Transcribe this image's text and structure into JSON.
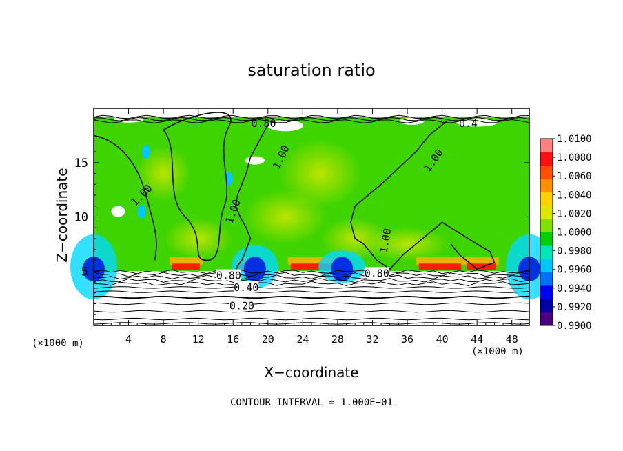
{
  "chart_data": {
    "type": "heatmap",
    "title": "saturation ratio",
    "xlabel": "X−coordinate",
    "ylabel": "Z−coordinate",
    "x_unit_label": "(×1000 m)",
    "footer": "CONTOUR INTERVAL = 1.000E−01",
    "xlim": [
      0,
      50
    ],
    "ylim": [
      0,
      20
    ],
    "x_ticks": [
      4,
      8,
      12,
      16,
      20,
      24,
      28,
      32,
      36,
      40,
      44,
      48
    ],
    "y_ticks": [
      5,
      10,
      15
    ],
    "colorbar": {
      "min": 0.99,
      "max": 1.01,
      "labels": [
        "1.0100",
        "1.0080",
        "1.0060",
        "1.0040",
        "1.0020",
        "1.0000",
        "0.9980",
        "0.9960",
        "0.9940",
        "0.9920",
        "0.9900"
      ],
      "colors": [
        "#4b0082",
        "#0000a0",
        "#0000ff",
        "#0070ff",
        "#00c8ff",
        "#00e6b4",
        "#00d000",
        "#80e000",
        "#dce600",
        "#ffd000",
        "#ff9000",
        "#ff5000",
        "#ff1010",
        "#ff8080"
      ]
    },
    "contour_labels": [
      "0.80",
      "0.80",
      "0.40",
      "0.20",
      "1.00",
      "1.00",
      "1.00",
      "1.00",
      "1.00",
      "0.80",
      "0.4"
    ],
    "series": [
      {
        "name": "1.00",
        "x": [
          40.5,
          38.5,
          37,
          35,
          33,
          31.5,
          30,
          29.5,
          30,
          31,
          32.5,
          34,
          35.5,
          37,
          38.5,
          40,
          42,
          44,
          45.5,
          46,
          44,
          42,
          41
        ],
        "y": [
          18.8,
          17.5,
          16,
          14.5,
          13,
          12,
          11,
          9.5,
          8,
          7.5,
          6,
          5.2,
          6.5,
          7.5,
          8.5,
          9.5,
          8.5,
          7.5,
          6.8,
          5.8,
          5.2,
          6.5,
          7.5
        ]
      },
      {
        "name": "1.00",
        "x": [
          20,
          19,
          18,
          17.5,
          17,
          16.5,
          16.3,
          16.8,
          17.5,
          18,
          17.5,
          17,
          16.5,
          16.3
        ],
        "y": [
          18.5,
          17,
          15.5,
          14,
          13,
          12,
          11,
          10,
          9,
          8,
          7,
          6,
          5.5,
          5
        ]
      }
    ]
  }
}
